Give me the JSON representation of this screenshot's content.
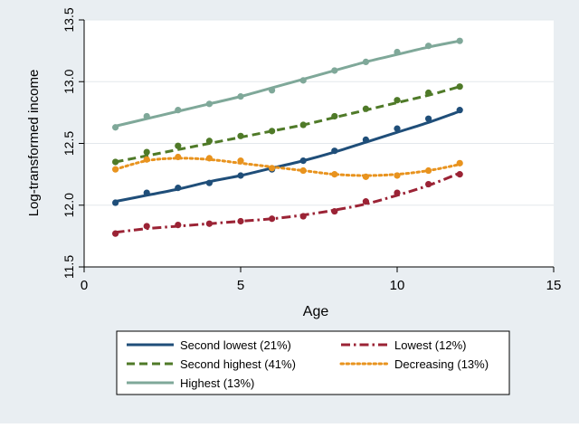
{
  "chart_data": {
    "type": "line",
    "xlabel": "Age",
    "ylabel": "Log-transformed income",
    "xlim": [
      0,
      15
    ],
    "ylim": [
      11.5,
      13.5
    ],
    "xticks": [
      "0",
      "5",
      "10",
      "15"
    ],
    "yticks": [
      "11.5",
      "12.0",
      "12.5",
      "13.0",
      "13.5"
    ],
    "grid": "horizontal",
    "legend_position": "bottom",
    "x": [
      1,
      2,
      3,
      4,
      5,
      6,
      7,
      8,
      9,
      10,
      11,
      12
    ],
    "series": [
      {
        "name": "Second lowest (21%)",
        "color": "#1f4e79",
        "dash": "solid",
        "points": [
          12.02,
          12.1,
          12.14,
          12.18,
          12.24,
          12.29,
          12.36,
          12.44,
          12.53,
          12.62,
          12.7,
          12.77
        ],
        "fitted": [
          12.03,
          12.08,
          12.13,
          12.19,
          12.24,
          12.3,
          12.36,
          12.43,
          12.51,
          12.59,
          12.67,
          12.76
        ]
      },
      {
        "name": "Lowest (12%)",
        "color": "#9b2335",
        "dash": "dashdot",
        "points": [
          11.77,
          11.83,
          11.84,
          11.85,
          11.87,
          11.89,
          11.91,
          11.95,
          12.03,
          12.1,
          12.17,
          12.25
        ],
        "fitted": [
          11.78,
          11.81,
          11.83,
          11.85,
          11.87,
          11.89,
          11.92,
          11.96,
          12.01,
          12.08,
          12.16,
          12.26
        ]
      },
      {
        "name": "Second highest (41%)",
        "color": "#4f7a28",
        "dash": "dash",
        "points": [
          12.35,
          12.43,
          12.48,
          12.52,
          12.56,
          12.6,
          12.65,
          12.72,
          12.78,
          12.85,
          12.91,
          12.96
        ],
        "fitted": [
          12.35,
          12.4,
          12.45,
          12.5,
          12.55,
          12.6,
          12.65,
          12.71,
          12.77,
          12.83,
          12.89,
          12.96
        ]
      },
      {
        "name": "Decreasing (13%)",
        "color": "#e8931e",
        "dash": "dot",
        "points": [
          12.29,
          12.37,
          12.39,
          12.38,
          12.36,
          12.3,
          12.28,
          12.25,
          12.23,
          12.24,
          12.28,
          12.34
        ],
        "fitted": [
          12.29,
          12.36,
          12.38,
          12.37,
          12.34,
          12.31,
          12.28,
          12.25,
          12.24,
          12.25,
          12.28,
          12.33
        ]
      },
      {
        "name": "Highest (13%)",
        "color": "#7fa899",
        "dash": "solid",
        "points": [
          12.63,
          12.72,
          12.77,
          12.82,
          12.88,
          12.93,
          13.01,
          13.09,
          13.16,
          13.24,
          13.29,
          13.33
        ],
        "fitted": [
          12.64,
          12.7,
          12.76,
          12.82,
          12.88,
          12.95,
          13.02,
          13.09,
          13.16,
          13.22,
          13.28,
          13.33
        ]
      }
    ]
  }
}
